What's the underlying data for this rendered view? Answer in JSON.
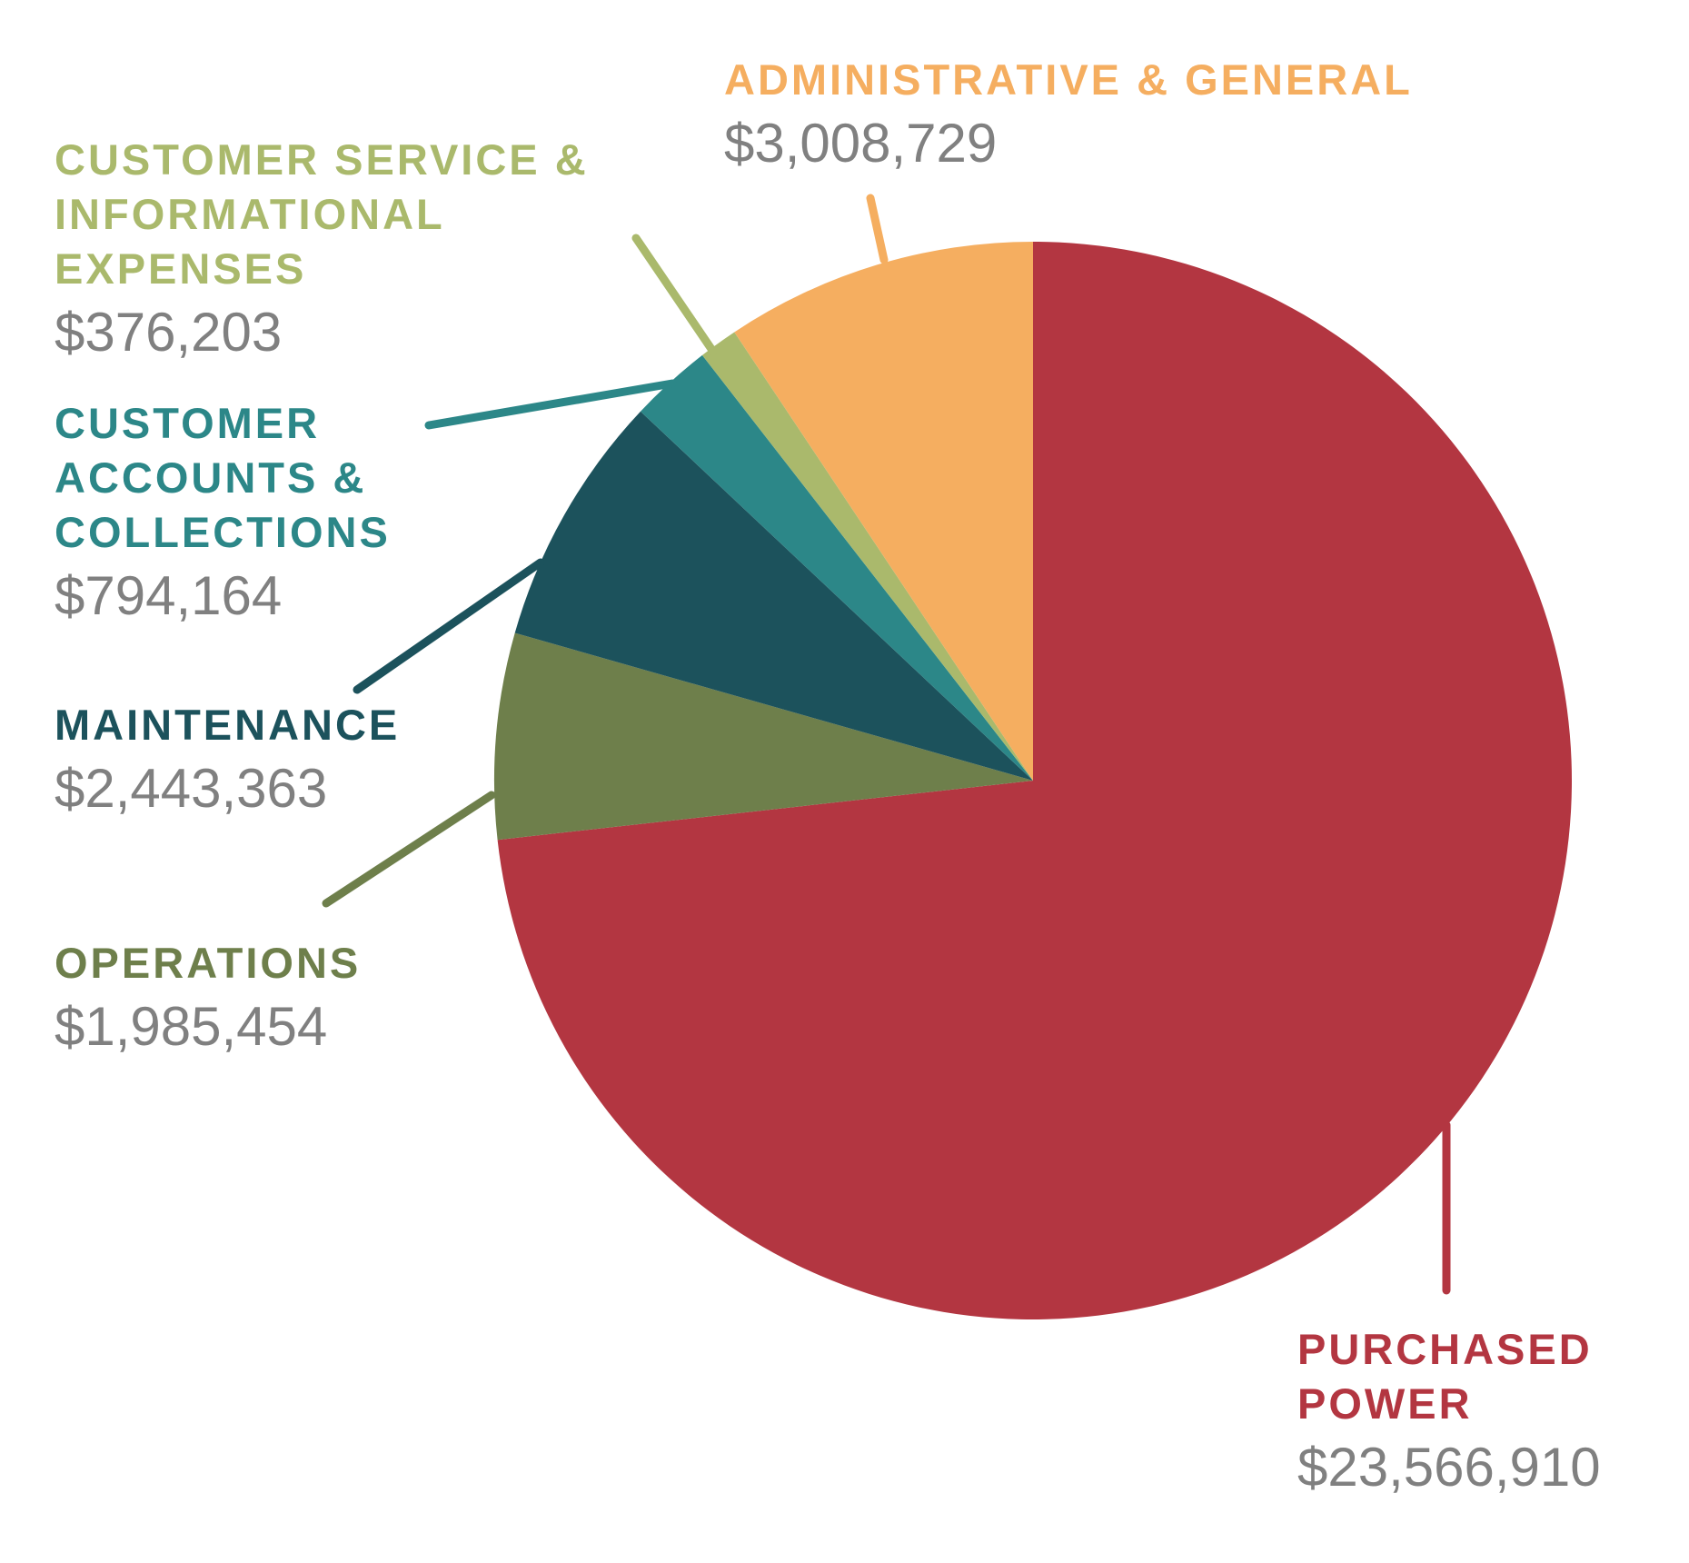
{
  "chart_data": {
    "type": "pie",
    "categories": [
      "PURCHASED POWER",
      "OPERATIONS",
      "MAINTENANCE",
      "CUSTOMER ACCOUNTS & COLLECTIONS",
      "CUSTOMER SERVICE & INFORMATIONAL EXPENSES",
      "ADMINISTRATIVE & GENERAL"
    ],
    "values": [
      23566910,
      1985454,
      2443363,
      794164,
      376203,
      3008729
    ],
    "value_labels": [
      "$23,566,910",
      "$1,985,454",
      "$2,443,363",
      "$794,164",
      "$376,203",
      "$3,008,729"
    ],
    "colors": [
      "#b33641",
      "#6e7f4b",
      "#1c525c",
      "#2c8788",
      "#aab96c",
      "#f5ae60"
    ]
  }
}
